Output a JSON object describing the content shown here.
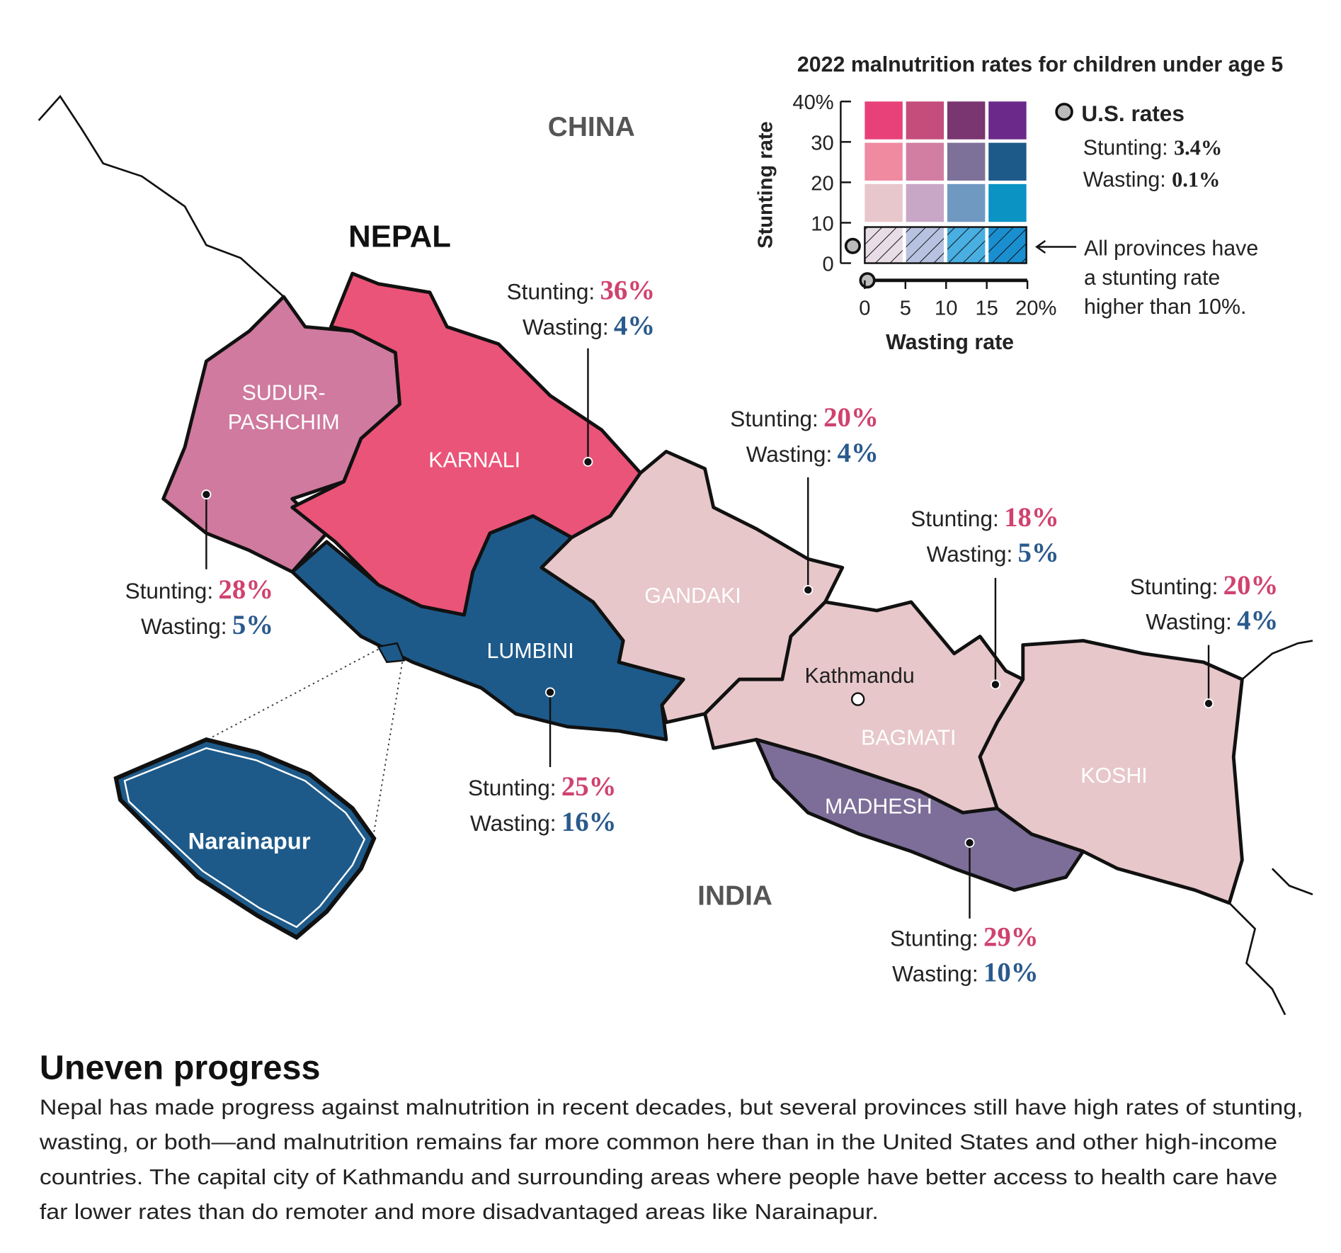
{
  "legend": {
    "title": "2022 malnutrition rates for children under age 5",
    "y_axis_label": "Stunting rate",
    "x_axis_label": "Wasting rate",
    "y_ticks": [
      "40%",
      "30",
      "20",
      "10",
      "0"
    ],
    "x_ticks": [
      "0",
      "5",
      "10",
      "15",
      "20%"
    ],
    "us_label": "U.S. rates",
    "us_stunting_label": "Stunting:",
    "us_stunting": "3.4%",
    "us_wasting_label": "Wasting:",
    "us_wasting": "0.1%",
    "note_lines": [
      "All provinces have",
      "a stunting rate",
      "higher than 10%."
    ]
  },
  "countries": {
    "china": "CHINA",
    "nepal": "NEPAL",
    "india": "INDIA"
  },
  "stunting_label": "Stunting:",
  "wasting_label": "Wasting:",
  "provinces": [
    {
      "name_lines": [
        "SUDUR-",
        "PASHCHIM"
      ],
      "stunting": "28%",
      "wasting": "5%"
    },
    {
      "name_lines": [
        "KARNALI"
      ],
      "stunting": "36%",
      "wasting": "4%"
    },
    {
      "name_lines": [
        "LUMBINI"
      ],
      "stunting": "25%",
      "wasting": "16%"
    },
    {
      "name_lines": [
        "GANDAKI"
      ],
      "stunting": "20%",
      "wasting": "4%"
    },
    {
      "name_lines": [
        "BAGMATI"
      ],
      "stunting": "18%",
      "wasting": "5%"
    },
    {
      "name_lines": [
        "KOSHI"
      ],
      "stunting": "20%",
      "wasting": "4%"
    },
    {
      "name_lines": [
        "MADHESH"
      ],
      "stunting": "29%",
      "wasting": "10%"
    }
  ],
  "city": "Kathmandu",
  "inset": "Narainapur",
  "heading": "Uneven progress",
  "body_lines": [
    "Nepal has made progress against malnutrition in recent decades, but several provinces still have high rates of stunting,",
    "wasting, or both—and malnutrition remains far more common here than in the United States and other high-income",
    "countries. The capital city of Kathmandu and surrounding areas where people have better access to health care have",
    "far lower rates than do remoter and more disadvantaged areas like Narainapur."
  ]
}
